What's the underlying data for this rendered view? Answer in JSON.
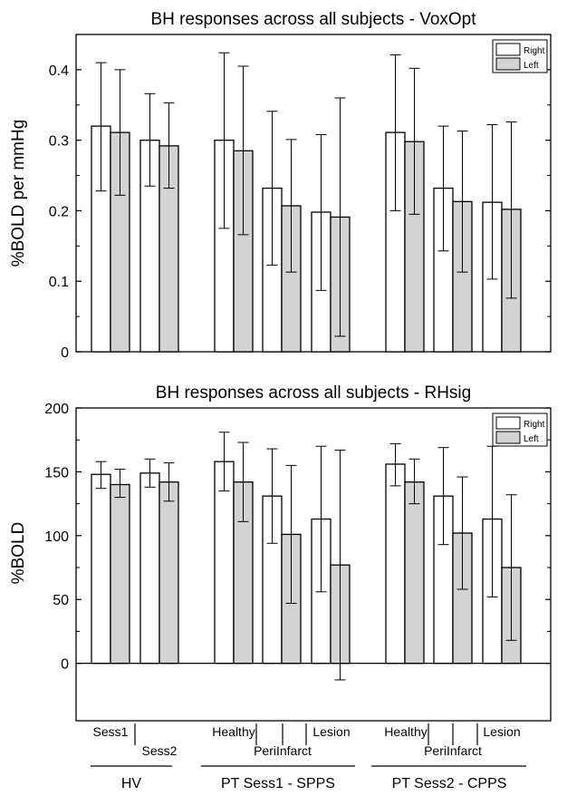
{
  "colors": {
    "right_fill": "#ffffff",
    "left_fill": "#d3d3d3",
    "stroke": "#000000"
  },
  "chart_data": [
    {
      "type": "bar",
      "title": "BH responses across all subjects - VoxOpt",
      "ylabel": "%BOLD per mmHg",
      "ylim": [
        0,
        0.45
      ],
      "yticks": [
        "0",
        "0.1",
        "0.2",
        "0.3",
        "0.4"
      ],
      "ytick_values": [
        0,
        0.1,
        0.2,
        0.3,
        0.4
      ],
      "legend": {
        "position": "top-right",
        "entries": [
          "Right",
          "Left"
        ]
      },
      "categories": [
        "HV Sess1",
        "HV Sess2",
        "PT Sess1 Healthy",
        "PT Sess1 PeriInfarct",
        "PT Sess1 Lesion",
        "PT Sess2 Healthy",
        "PT Sess2 PeriInfarct",
        "PT Sess2 Lesion"
      ],
      "series": [
        {
          "name": "Right",
          "values": [
            0.32,
            0.3,
            0.3,
            0.232,
            0.198,
            0.311,
            0.232,
            0.212
          ],
          "err_upper": [
            0.41,
            0.366,
            0.424,
            0.341,
            0.308,
            0.421,
            0.32,
            0.322
          ],
          "err_lower": [
            0.228,
            0.235,
            0.175,
            0.123,
            0.087,
            0.2,
            0.143,
            0.103
          ]
        },
        {
          "name": "Left",
          "values": [
            0.311,
            0.292,
            0.285,
            0.207,
            0.191,
            0.298,
            0.213,
            0.202
          ],
          "err_upper": [
            0.4,
            0.353,
            0.405,
            0.301,
            0.36,
            0.402,
            0.313,
            0.326
          ],
          "err_lower": [
            0.222,
            0.232,
            0.166,
            0.113,
            0.022,
            0.195,
            0.113,
            0.076
          ]
        }
      ]
    },
    {
      "type": "bar",
      "title": "BH responses across all subjects - RHsig",
      "ylabel": "%BOLD",
      "ylim": [
        -45,
        200
      ],
      "yticks": [
        "0",
        "50",
        "100",
        "150",
        "200"
      ],
      "ytick_values": [
        0,
        50,
        100,
        150,
        200
      ],
      "legend": {
        "position": "top-right",
        "entries": [
          "Right",
          "Left"
        ]
      },
      "categories": [
        "HV Sess1",
        "HV Sess2",
        "PT Sess1 Healthy",
        "PT Sess1 PeriInfarct",
        "PT Sess1 Lesion",
        "PT Sess2 Healthy",
        "PT Sess2 PeriInfarct",
        "PT Sess2 Lesion"
      ],
      "series": [
        {
          "name": "Right",
          "values": [
            148,
            149,
            158,
            131,
            113,
            156,
            131,
            113
          ],
          "err_upper": [
            158,
            160,
            181,
            168,
            170,
            172,
            169,
            170
          ],
          "err_lower": [
            137,
            138,
            135,
            94,
            56,
            139,
            93,
            52
          ]
        },
        {
          "name": "Left",
          "values": [
            140,
            142,
            142,
            101,
            77,
            142,
            102,
            75
          ],
          "err_upper": [
            152,
            157,
            173,
            155,
            167,
            160,
            146,
            132
          ],
          "err_lower": [
            130,
            127,
            111,
            47,
            -13,
            125,
            58,
            18
          ]
        }
      ]
    }
  ],
  "x_axis": {
    "row1": [
      "Sess1",
      "Healthy",
      "Lesion",
      "Healthy",
      "Lesion"
    ],
    "row2": [
      "Sess2",
      "PeriInfarct",
      "PeriInfarct"
    ],
    "groups": [
      "HV",
      "PT Sess1 - SPPS",
      "PT Sess2 - CPPS"
    ]
  }
}
